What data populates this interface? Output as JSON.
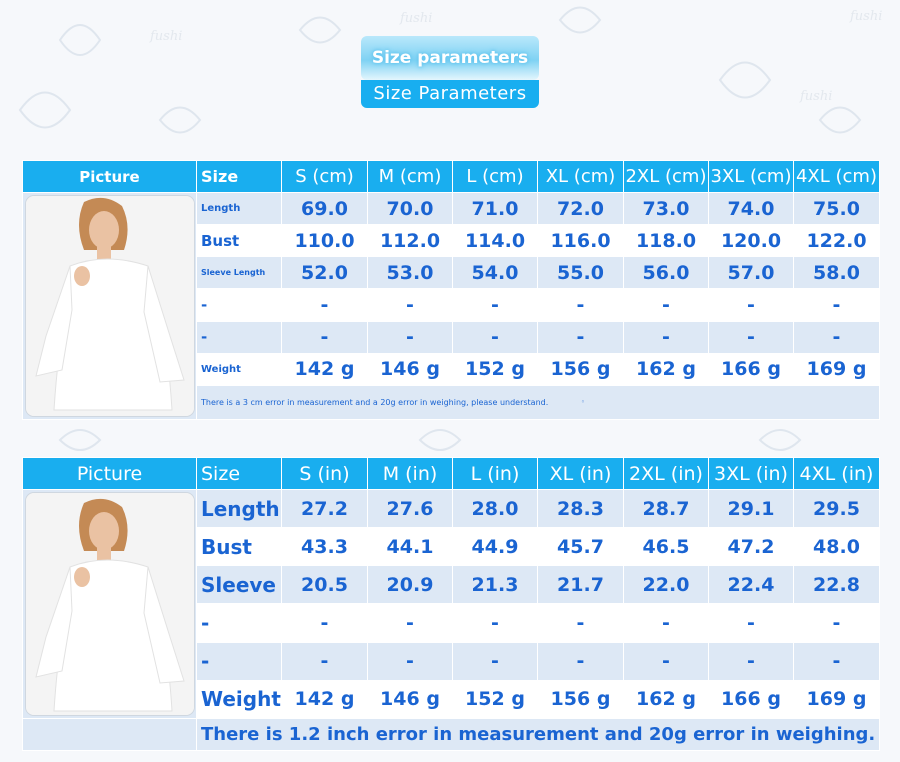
{
  "header": {
    "top_label": "Size parameters",
    "bottom_label": "Size Parameters"
  },
  "watermark": "fushi",
  "colors": {
    "header_blue": "#19aeef",
    "row_tint": "#dde8f5",
    "text_blue": "#1a64d2"
  },
  "table_cm": {
    "picture_label": "Picture",
    "size_label": "Size",
    "columns": [
      "S (cm)",
      "M (cm)",
      "L (cm)",
      "XL (cm)",
      "2XL (cm)",
      "3XL (cm)",
      "4XL (cm)"
    ],
    "rows": [
      {
        "label": "Length",
        "values": [
          "69.0",
          "70.0",
          "71.0",
          "72.0",
          "73.0",
          "74.0",
          "75.0"
        ]
      },
      {
        "label": "Bust",
        "values": [
          "110.0",
          "112.0",
          "114.0",
          "116.0",
          "118.0",
          "120.0",
          "122.0"
        ]
      },
      {
        "label": "Sleeve Length",
        "values": [
          "52.0",
          "53.0",
          "54.0",
          "55.0",
          "56.0",
          "57.0",
          "58.0"
        ]
      },
      {
        "label": "-",
        "values": [
          "-",
          "-",
          "-",
          "-",
          "-",
          "-",
          "-"
        ]
      },
      {
        "label": "-",
        "values": [
          "-",
          "-",
          "-",
          "-",
          "-",
          "-",
          "-"
        ]
      },
      {
        "label": "Weight",
        "values": [
          "142 g",
          "146 g",
          "152 g",
          "156 g",
          "162 g",
          "166 g",
          "169 g"
        ]
      }
    ],
    "note": "There is a 3 cm error in measurement and a 20g error in weighing, please understand."
  },
  "table_in": {
    "picture_label": "Picture",
    "size_label": "Size",
    "columns": [
      "S (in)",
      "M (in)",
      "L (in)",
      "XL (in)",
      "2XL (in)",
      "3XL (in)",
      "4XL (in)"
    ],
    "rows": [
      {
        "label": "Length",
        "values": [
          "27.2",
          "27.6",
          "28.0",
          "28.3",
          "28.7",
          "29.1",
          "29.5"
        ]
      },
      {
        "label": "Bust",
        "values": [
          "43.3",
          "44.1",
          "44.9",
          "45.7",
          "46.5",
          "47.2",
          "48.0"
        ]
      },
      {
        "label": "Sleeve",
        "values": [
          "20.5",
          "20.9",
          "21.3",
          "21.7",
          "22.0",
          "22.4",
          "22.8"
        ]
      },
      {
        "label": "-",
        "values": [
          "-",
          "-",
          "-",
          "-",
          "-",
          "-",
          "-"
        ]
      },
      {
        "label": "-",
        "values": [
          "-",
          "-",
          "-",
          "-",
          "-",
          "-",
          "-"
        ]
      },
      {
        "label": "Weight",
        "values": [
          "142 g",
          "146 g",
          "152 g",
          "156 g",
          "162 g",
          "166 g",
          "169 g"
        ]
      }
    ],
    "note": "There is 1.2 inch error in measurement and 20g error in weighing."
  },
  "product_image": {
    "icon": "dress-model-photo"
  }
}
